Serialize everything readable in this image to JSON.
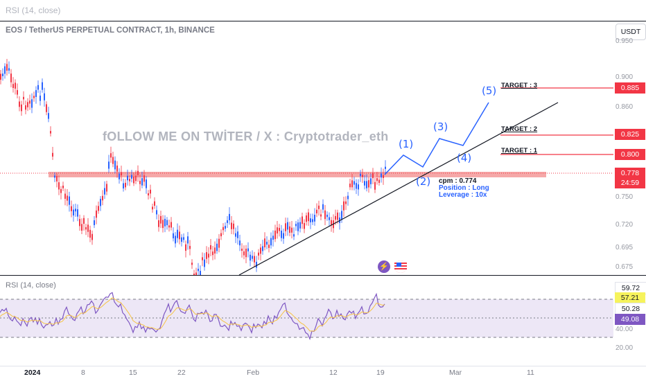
{
  "top_panel": {
    "label": "RSI (14, close)"
  },
  "chart_header": {
    "title": "EOS / TetherUS PERPETUAL CONTRACT, 1h, BINANCE",
    "currency_button": "USDT"
  },
  "watermark": "fOLLOW ME ON TWİTER / X : Cryptotrader_eth",
  "price_axis": {
    "ticks": [
      "0.950",
      "0.900",
      "0.860",
      "0.750",
      "0.720",
      "0.695",
      "0.675"
    ],
    "target_badges": [
      "0.885",
      "0.825",
      "0.800"
    ],
    "last_price": "0.778",
    "countdown": "24:59"
  },
  "annotations": {
    "targets": [
      "TARGET : 3",
      "TARGET : 2",
      "TARGET : 1"
    ],
    "waves": [
      "(1)",
      "(2)",
      "(3)",
      "(4)",
      "(5)"
    ],
    "entry": "cpm : 0.774",
    "position": "Position : Long",
    "leverage": "Leverage : 10x"
  },
  "rsi_panel": {
    "label": "RSI (14, close)",
    "badges": [
      "59.72",
      "57.21",
      "50.28",
      "49.08"
    ],
    "axis_ticks": [
      "40.00",
      "20.00"
    ]
  },
  "time_axis": [
    "2024",
    "8",
    "15",
    "22",
    "Feb",
    "12",
    "19",
    "Mar",
    "11"
  ],
  "colors": {
    "candle_up": "#2962ff",
    "candle_down": "#f23645",
    "rsi_line": "#7e57c2",
    "rsi_band": "#ede7f6",
    "support_zone": "#f28b8b"
  },
  "icons": [
    "lightning-icon",
    "us-flag-icon"
  ]
}
